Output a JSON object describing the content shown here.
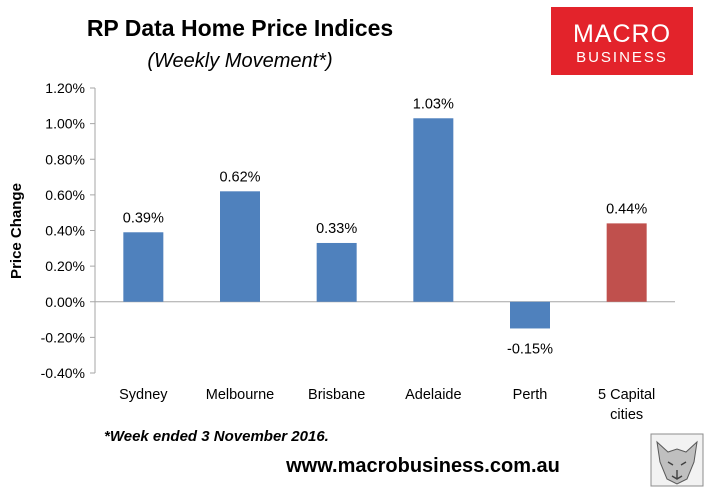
{
  "title": "RP Data Home Price Indices",
  "subtitle": "(Weekly Movement*)",
  "footnote": "*Week ended 3 November 2016.",
  "website": "www.macrobusiness.com.au",
  "logo": {
    "line1": "MACRO",
    "line2": "BUSINESS",
    "color": "#e3232b"
  },
  "colors": {
    "bar_default": "#4f81bd",
    "bar_highlight": "#c0504d",
    "axis": "#a6a6a6"
  },
  "chart_data": {
    "type": "bar",
    "categories": [
      "Sydney",
      "Melbourne",
      "Brisbane",
      "Adelaide",
      "Perth",
      "5 Capital cities"
    ],
    "category_lines": [
      [
        "Sydney"
      ],
      [
        "Melbourne"
      ],
      [
        "Brisbane"
      ],
      [
        "Adelaide"
      ],
      [
        "Perth"
      ],
      [
        "5 Capital",
        "cities"
      ]
    ],
    "values": [
      0.39,
      0.62,
      0.33,
      1.03,
      -0.15,
      0.44
    ],
    "data_labels": [
      "0.39%",
      "0.62%",
      "0.33%",
      "1.03%",
      "-0.15%",
      "0.44%"
    ],
    "highlight_index": 5,
    "ylabel": "Price Change",
    "ylim": [
      -0.4,
      1.2
    ],
    "yticks": [
      -0.4,
      -0.2,
      0.0,
      0.2,
      0.4,
      0.6,
      0.8,
      1.0,
      1.2
    ],
    "ytick_labels": [
      "-0.40%",
      "-0.20%",
      "0.00%",
      "0.20%",
      "0.40%",
      "0.60%",
      "0.80%",
      "1.00%",
      "1.20%"
    ],
    "grid": false,
    "legend": "none"
  }
}
